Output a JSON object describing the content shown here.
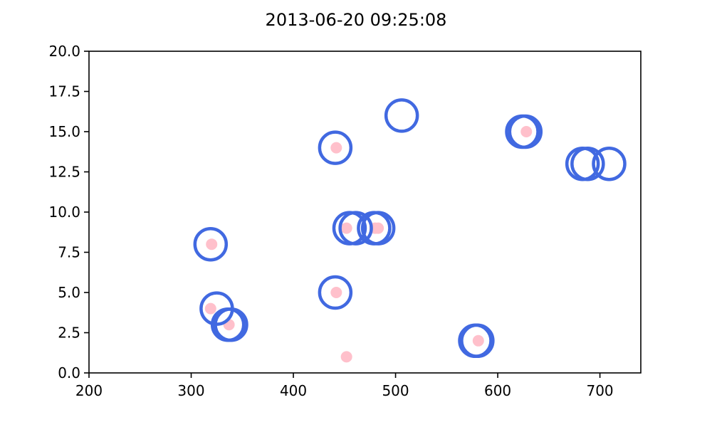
{
  "chart_data": {
    "type": "scatter",
    "title": "2013-06-20 09:25:08",
    "xlabel": "",
    "ylabel": "",
    "xlim": [
      200,
      740
    ],
    "ylim": [
      0,
      20
    ],
    "x_ticks": [
      200,
      300,
      400,
      500,
      600,
      700
    ],
    "y_ticks": [
      0,
      2.5,
      5,
      7.5,
      10,
      12.5,
      15,
      17.5,
      20
    ],
    "x_tick_labels": [
      "200",
      "300",
      "400",
      "500",
      "600",
      "700"
    ],
    "y_tick_labels": [
      "0.0",
      "2.5",
      "5.0",
      "7.5",
      "10.0",
      "12.5",
      "15.0",
      "17.5",
      "20.0"
    ],
    "grid": false,
    "legend": "none",
    "series": [
      {
        "marker": "hollow-circle",
        "color": "#4169e1",
        "points": [
          {
            "x": 319,
            "y": 8
          },
          {
            "x": 325,
            "y": 4
          },
          {
            "x": 336,
            "y": 3
          },
          {
            "x": 339,
            "y": 3
          },
          {
            "x": 441,
            "y": 14
          },
          {
            "x": 441,
            "y": 5
          },
          {
            "x": 455,
            "y": 9
          },
          {
            "x": 461,
            "y": 9
          },
          {
            "x": 479,
            "y": 9
          },
          {
            "x": 483,
            "y": 9
          },
          {
            "x": 506,
            "y": 16
          },
          {
            "x": 578,
            "y": 2
          },
          {
            "x": 580,
            "y": 2
          },
          {
            "x": 624,
            "y": 15
          },
          {
            "x": 627,
            "y": 15
          },
          {
            "x": 683,
            "y": 13
          },
          {
            "x": 688,
            "y": 13
          },
          {
            "x": 709,
            "y": 13
          }
        ]
      },
      {
        "marker": "filled-dot",
        "color": "#ffc0cb",
        "points": [
          {
            "x": 320,
            "y": 8
          },
          {
            "x": 319,
            "y": 4
          },
          {
            "x": 337,
            "y": 3
          },
          {
            "x": 442,
            "y": 14
          },
          {
            "x": 442,
            "y": 5
          },
          {
            "x": 452,
            "y": 9
          },
          {
            "x": 480,
            "y": 9
          },
          {
            "x": 483,
            "y": 9
          },
          {
            "x": 452,
            "y": 1
          },
          {
            "x": 581,
            "y": 2
          },
          {
            "x": 628,
            "y": 15
          }
        ]
      }
    ]
  }
}
